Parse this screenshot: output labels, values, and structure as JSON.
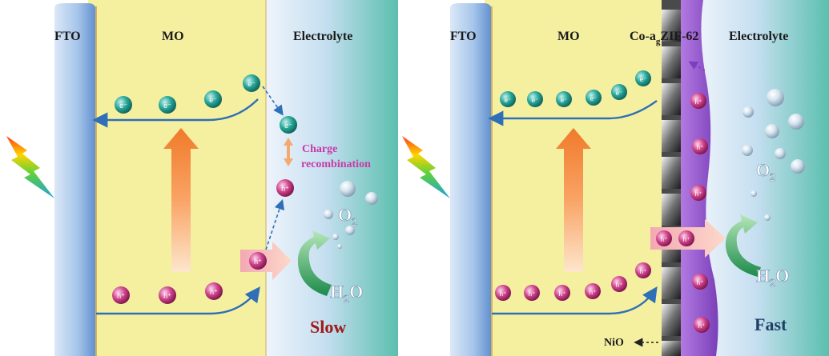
{
  "left": {
    "fto_label": "FTO",
    "mo_label": "MO",
    "electrolyte_label": "Electrolyte",
    "electron_symbol": "e⁻",
    "hole_symbol": "h⁺",
    "charge_recombination": [
      "Charge",
      "recombination"
    ],
    "o2_label": "O",
    "o2_sub": "2",
    "h2o_label_h": "H",
    "h2o_sub": "2",
    "h2o_label_o": "O",
    "speed_label": "Slow"
  },
  "right": {
    "fto_label": "FTO",
    "mo_label": "MO",
    "cocat_label_main": "Co-a",
    "cocat_label_sub": "g",
    "cocat_label_rest": "ZIF-62",
    "electrolyte_label": "Electrolyte",
    "electron_symbol": "e⁻",
    "hole_symbol": "h⁺",
    "o2_label": "O",
    "o2_sub": "2",
    "h2o_label_h": "H",
    "h2o_sub": "2",
    "h2o_label_o": "O",
    "nio_label": "NiO",
    "speed_label": "Fast"
  },
  "colors": {
    "mo_fill": "#f5f0a0",
    "fto_fill": "#a9c8ea",
    "electron_fill": "#1a9a8e",
    "hole_fill": "#c0307a",
    "zif_fill": "#9a5cd0",
    "slow_color": "#a01818",
    "fast_color": "#1f3f66",
    "recombination_color": "#c83aa8"
  }
}
